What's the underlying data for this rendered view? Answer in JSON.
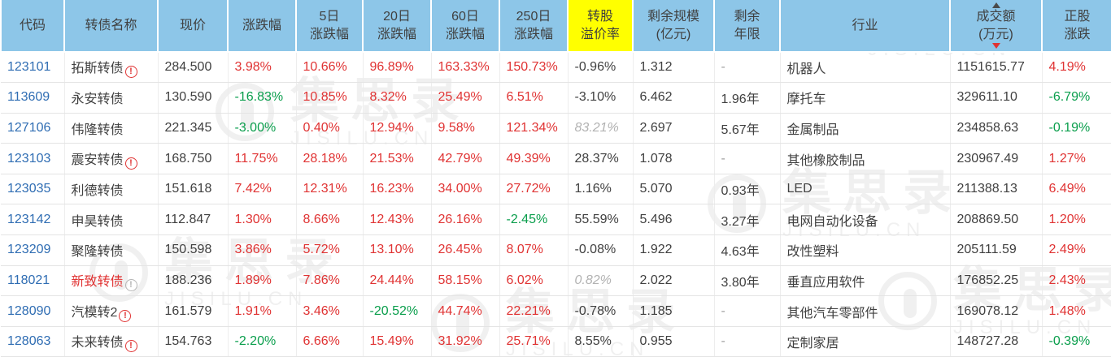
{
  "watermark": {
    "cn": "集思录",
    "en": "JISILU.CN"
  },
  "icons": {
    "warning": "!"
  },
  "colors": {
    "header_bg": "#8dc6e8",
    "highlight_bg": "#ffff00",
    "up_red": "#e03333",
    "down_green": "#0a9e4c",
    "code_link_blue": "#2f6db3",
    "muted_gray": "#b2b2b2",
    "text_dark": "#404040"
  },
  "table": {
    "sort": {
      "column": "turnover",
      "direction": "desc"
    },
    "columns": [
      {
        "id": "code",
        "label": "代码"
      },
      {
        "id": "name",
        "label": "转债名称"
      },
      {
        "id": "price",
        "label": "现价"
      },
      {
        "id": "chg",
        "label": "涨跌幅"
      },
      {
        "id": "d5",
        "label": "5日\n涨跌幅"
      },
      {
        "id": "d20",
        "label": "20日\n涨跌幅"
      },
      {
        "id": "d60",
        "label": "60日\n涨跌幅"
      },
      {
        "id": "d250",
        "label": "250日\n涨跌幅"
      },
      {
        "id": "premium",
        "label": "转股\n溢价率",
        "highlight": true
      },
      {
        "id": "scale",
        "label": "剩余规模\n(亿元)"
      },
      {
        "id": "years",
        "label": "剩余\n年限"
      },
      {
        "id": "industry",
        "label": "行业"
      },
      {
        "id": "turnover",
        "label": "成交额\n(万元)"
      },
      {
        "id": "stock",
        "label": "正股\n涨跌"
      }
    ],
    "rows": [
      {
        "code": "123101",
        "name": {
          "t": "拓斯转债",
          "color": "dark",
          "icon": "red"
        },
        "price": "284.500",
        "chg": [
          "3.98%",
          "up"
        ],
        "d5": [
          "10.66%",
          "up"
        ],
        "d20": [
          "96.89%",
          "up"
        ],
        "d60": [
          "163.33%",
          "up"
        ],
        "d250": [
          "150.73%",
          "up"
        ],
        "premium": [
          "-0.96%",
          "dark"
        ],
        "scale": "1.312",
        "years": [
          "-",
          "dim"
        ],
        "industry": "机器人",
        "turnover": "1151615.77",
        "stock": [
          "4.19%",
          "up"
        ]
      },
      {
        "code": "113609",
        "name": {
          "t": "永安转债",
          "color": "dark",
          "icon": null
        },
        "price": "130.590",
        "chg": [
          "-16.83%",
          "down"
        ],
        "d5": [
          "10.85%",
          "up"
        ],
        "d20": [
          "8.32%",
          "up"
        ],
        "d60": [
          "25.49%",
          "up"
        ],
        "d250": [
          "6.51%",
          "up"
        ],
        "premium": [
          "-3.10%",
          "dark"
        ],
        "scale": "6.462",
        "years": [
          "1.96年",
          "dark"
        ],
        "industry": "摩托车",
        "turnover": "329611.10",
        "stock": [
          "-6.79%",
          "down"
        ]
      },
      {
        "code": "127106",
        "name": {
          "t": "伟隆转债",
          "color": "dark",
          "icon": null
        },
        "price": "221.345",
        "chg": [
          "-3.00%",
          "down"
        ],
        "d5": [
          "0.40%",
          "up"
        ],
        "d20": [
          "12.94%",
          "up"
        ],
        "d60": [
          "9.58%",
          "up"
        ],
        "d250": [
          "121.34%",
          "up"
        ],
        "premium": [
          "83.21%",
          "ital"
        ],
        "scale": "2.697",
        "years": [
          "5.67年",
          "dark"
        ],
        "industry": "金属制品",
        "turnover": "234858.63",
        "stock": [
          "-0.19%",
          "down"
        ]
      },
      {
        "code": "123103",
        "name": {
          "t": "震安转债",
          "color": "dark",
          "icon": "red"
        },
        "price": "168.750",
        "chg": [
          "11.75%",
          "up"
        ],
        "d5": [
          "28.18%",
          "up"
        ],
        "d20": [
          "21.53%",
          "up"
        ],
        "d60": [
          "42.79%",
          "up"
        ],
        "d250": [
          "49.39%",
          "up"
        ],
        "premium": [
          "28.37%",
          "dark"
        ],
        "scale": "1.078",
        "years": [
          "-",
          "dim"
        ],
        "industry": "其他橡胶制品",
        "turnover": "230967.49",
        "stock": [
          "1.27%",
          "up"
        ]
      },
      {
        "code": "123035",
        "name": {
          "t": "利德转债",
          "color": "dark",
          "icon": null
        },
        "price": "151.618",
        "chg": [
          "7.42%",
          "up"
        ],
        "d5": [
          "12.31%",
          "up"
        ],
        "d20": [
          "16.23%",
          "up"
        ],
        "d60": [
          "34.00%",
          "up"
        ],
        "d250": [
          "27.72%",
          "up"
        ],
        "premium": [
          "1.16%",
          "dark"
        ],
        "scale": "5.070",
        "years": [
          "0.93年",
          "dark"
        ],
        "industry": "LED",
        "turnover": "211388.13",
        "stock": [
          "6.49%",
          "up"
        ]
      },
      {
        "code": "123142",
        "name": {
          "t": "申昊转债",
          "color": "dark",
          "icon": null
        },
        "price": "112.847",
        "chg": [
          "1.30%",
          "up"
        ],
        "d5": [
          "8.66%",
          "up"
        ],
        "d20": [
          "12.43%",
          "up"
        ],
        "d60": [
          "26.16%",
          "up"
        ],
        "d250": [
          "-2.45%",
          "down"
        ],
        "premium": [
          "55.59%",
          "dark"
        ],
        "scale": "5.496",
        "years": [
          "3.27年",
          "dark"
        ],
        "industry": "电网自动化设备",
        "turnover": "208869.50",
        "stock": [
          "1.20%",
          "up"
        ]
      },
      {
        "code": "123209",
        "name": {
          "t": "聚隆转债",
          "color": "dark",
          "icon": null
        },
        "price": "150.598",
        "chg": [
          "3.86%",
          "up"
        ],
        "d5": [
          "5.72%",
          "up"
        ],
        "d20": [
          "13.10%",
          "up"
        ],
        "d60": [
          "26.45%",
          "up"
        ],
        "d250": [
          "8.07%",
          "up"
        ],
        "premium": [
          "-0.08%",
          "dark"
        ],
        "scale": "1.922",
        "years": [
          "4.63年",
          "dark"
        ],
        "industry": "改性塑料",
        "turnover": "205111.59",
        "stock": [
          "2.49%",
          "up"
        ]
      },
      {
        "code": "118021",
        "name": {
          "t": "新致转债",
          "color": "up",
          "icon": "gray"
        },
        "price": "188.236",
        "chg": [
          "1.89%",
          "up"
        ],
        "d5": [
          "7.86%",
          "up"
        ],
        "d20": [
          "24.44%",
          "up"
        ],
        "d60": [
          "58.15%",
          "up"
        ],
        "d250": [
          "6.02%",
          "up"
        ],
        "premium": [
          "0.82%",
          "ital"
        ],
        "scale": "2.022",
        "years": [
          "3.80年",
          "dark"
        ],
        "industry": "垂直应用软件",
        "turnover": "176852.25",
        "stock": [
          "2.43%",
          "up"
        ]
      },
      {
        "code": "128090",
        "name": {
          "t": "汽模转2",
          "color": "dark",
          "icon": "red"
        },
        "price": "161.579",
        "chg": [
          "1.91%",
          "up"
        ],
        "d5": [
          "3.46%",
          "up"
        ],
        "d20": [
          "-20.52%",
          "down"
        ],
        "d60": [
          "44.74%",
          "up"
        ],
        "d250": [
          "22.21%",
          "up"
        ],
        "premium": [
          "-0.78%",
          "dark"
        ],
        "scale": "1.185",
        "years": [
          "-",
          "dim"
        ],
        "industry": "其他汽车零部件",
        "turnover": "169078.12",
        "stock": [
          "1.48%",
          "up"
        ]
      },
      {
        "code": "128063",
        "name": {
          "t": "未来转债",
          "color": "dark",
          "icon": "red"
        },
        "price": "154.763",
        "chg": [
          "-2.20%",
          "down"
        ],
        "d5": [
          "6.66%",
          "up"
        ],
        "d20": [
          "15.49%",
          "up"
        ],
        "d60": [
          "31.92%",
          "up"
        ],
        "d250": [
          "25.71%",
          "up"
        ],
        "premium": [
          "8.55%",
          "dark"
        ],
        "scale": "0.955",
        "years": [
          "-",
          "dim"
        ],
        "industry": "定制家居",
        "turnover": "148727.28",
        "stock": [
          "-0.39%",
          "down"
        ]
      }
    ]
  }
}
